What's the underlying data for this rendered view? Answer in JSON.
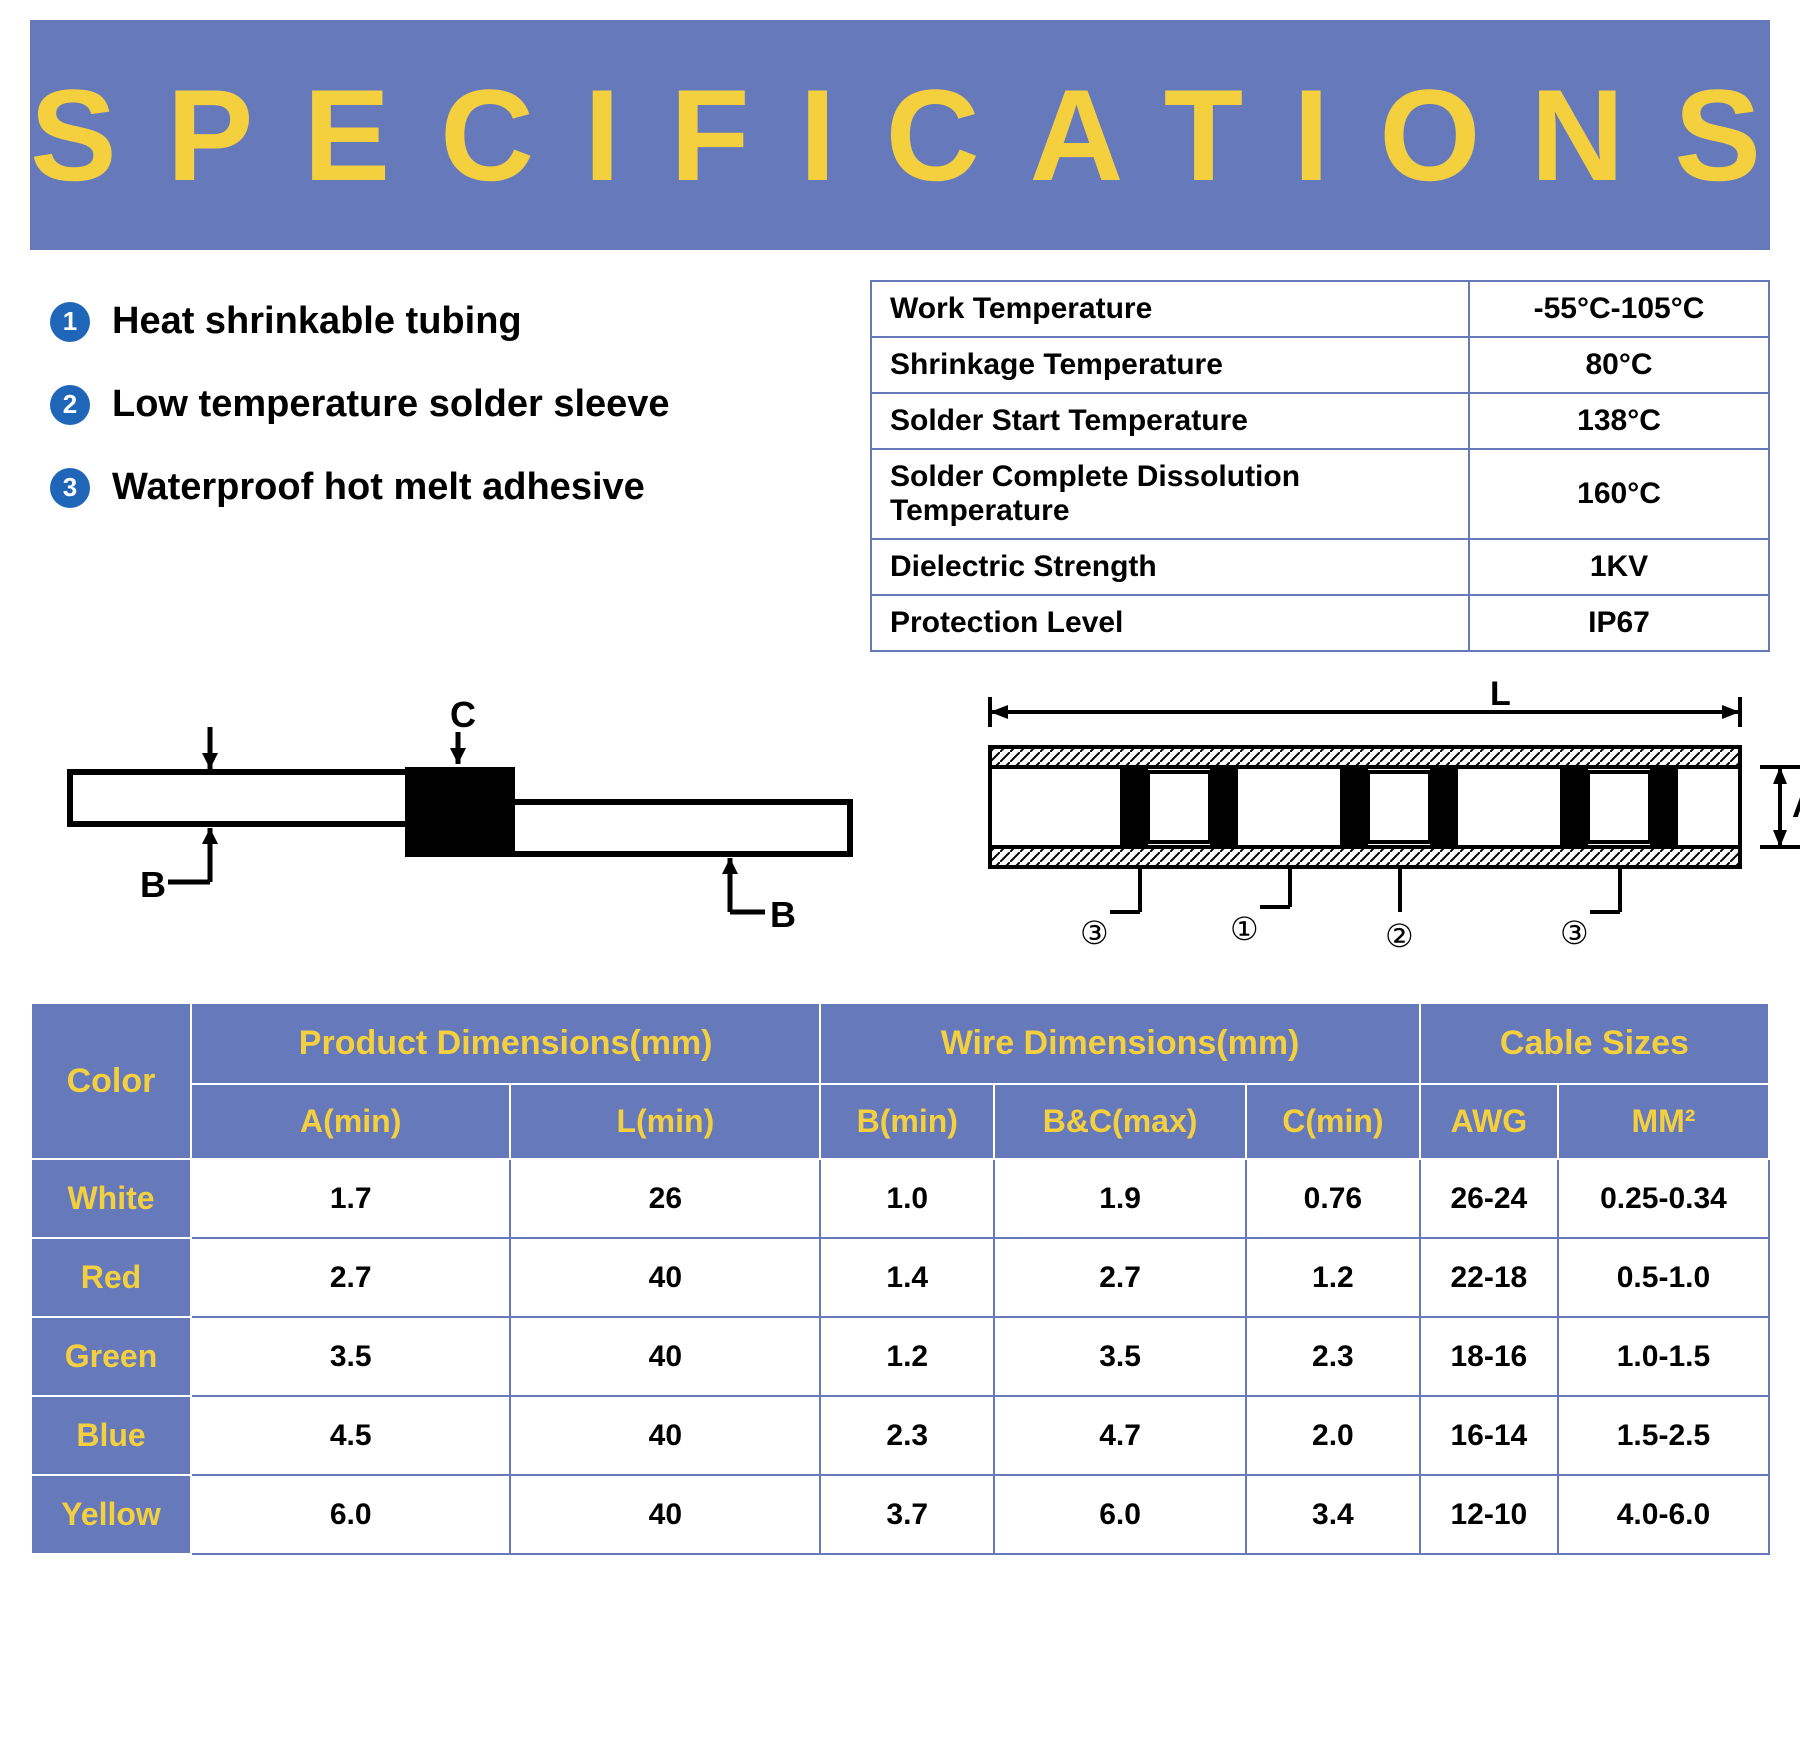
{
  "title": "SPECIFICATIONS",
  "colors": {
    "banner_bg": "#6679bb",
    "accent_text": "#f4d03f",
    "badge_bg": "#1f66b8",
    "border": "#6679bb",
    "body_text": "#000000",
    "white": "#ffffff"
  },
  "fonts": {
    "title_size": 130,
    "title_letter_spacing": 50,
    "feature_size": 38,
    "spec_cell_size": 30,
    "dim_header_size": 34,
    "dim_subheader_size": 32,
    "dim_cell_size": 30
  },
  "features": [
    {
      "num": "1",
      "text": "Heat shrinkable tubing"
    },
    {
      "num": "2",
      "text": "Low temperature solder sleeve"
    },
    {
      "num": "3",
      "text": "Waterproof hot melt adhesive"
    }
  ],
  "spec_rows": [
    {
      "label": "Work Temperature",
      "value": "-55°C-105°C"
    },
    {
      "label": "Shrinkage Temperature",
      "value": "80°C"
    },
    {
      "label": "Solder Start Temperature",
      "value": "138°C"
    },
    {
      "label": "Solder Complete Dissolution Temperature",
      "value": "160°C"
    },
    {
      "label": "Dielectric Strength",
      "value": "1KV"
    },
    {
      "label": "Protection Level",
      "value": "IP67"
    }
  ],
  "diagram1": {
    "labels": {
      "C": "C",
      "B_left": "B",
      "B_right": "B"
    },
    "stroke": "#000000",
    "fill_dark": "#000000"
  },
  "diagram2": {
    "labels": {
      "L": "L",
      "A": "A",
      "n1": "①",
      "n2": "②",
      "n3": "③",
      "n3b": "③"
    },
    "stroke": "#000000"
  },
  "dim_headers": {
    "color": "Color",
    "product": "Product Dimensions(mm)",
    "wire": "Wire Dimensions(mm)",
    "cable": "Cable Sizes",
    "A": "A(min)",
    "L": "L(min)",
    "Bmin": "B(min)",
    "BCmax": "B&C(max)",
    "Cmin": "C(min)",
    "AWG": "AWG",
    "MM2": "MM²"
  },
  "dim_rows": [
    {
      "color": "White",
      "A": "1.7",
      "L": "26",
      "Bmin": "1.0",
      "BCmax": "1.9",
      "Cmin": "0.76",
      "AWG": "26-24",
      "MM2": "0.25-0.34"
    },
    {
      "color": "Red",
      "A": "2.7",
      "L": "40",
      "Bmin": "1.4",
      "BCmax": "2.7",
      "Cmin": "1.2",
      "AWG": "22-18",
      "MM2": "0.5-1.0"
    },
    {
      "color": "Green",
      "A": "3.5",
      "L": "40",
      "Bmin": "1.2",
      "BCmax": "3.5",
      "Cmin": "2.3",
      "AWG": "18-16",
      "MM2": "1.0-1.5"
    },
    {
      "color": "Blue",
      "A": "4.5",
      "L": "40",
      "Bmin": "2.3",
      "BCmax": "4.7",
      "Cmin": "2.0",
      "AWG": "16-14",
      "MM2": "1.5-2.5"
    },
    {
      "color": "Yellow",
      "A": "6.0",
      "L": "40",
      "Bmin": "3.7",
      "BCmax": "6.0",
      "Cmin": "3.4",
      "AWG": "12-10",
      "MM2": "4.0-6.0"
    }
  ]
}
